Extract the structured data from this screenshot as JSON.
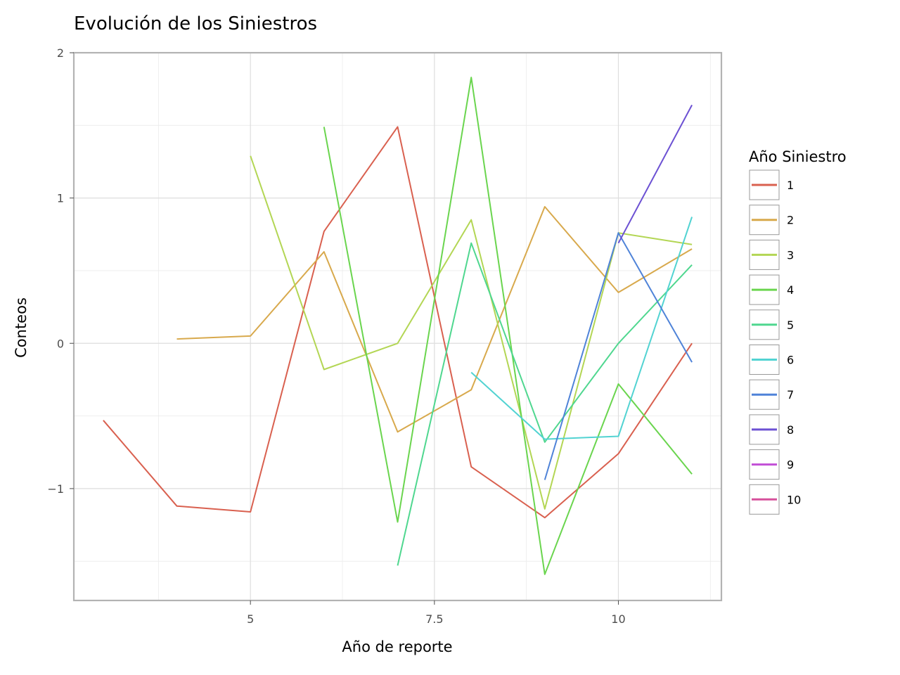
{
  "chart_data": {
    "type": "line",
    "title": "Evolución de los Siniestros",
    "xlabel": "Año de reporte",
    "ylabel": "Conteos",
    "xlim": [
      2.6,
      11.4
    ],
    "ylim": [
      -1.77,
      2.0
    ],
    "x_ticks": [
      5,
      7.5,
      10
    ],
    "x_tick_labels": [
      "5",
      "7.5",
      "10"
    ],
    "y_ticks": [
      -1,
      0,
      1,
      2
    ],
    "y_tick_labels": [
      "−1",
      "0",
      "1",
      "2"
    ],
    "grid": true,
    "legend": {
      "title": "Año Siniestro",
      "position": "right"
    },
    "series": [
      {
        "name": "1",
        "color": "#D9604F",
        "x": [
          3,
          4,
          5,
          6,
          7,
          8,
          9,
          10,
          11
        ],
        "y": [
          -0.53,
          -1.12,
          -1.16,
          0.77,
          1.49,
          -0.85,
          -1.2,
          -0.76,
          0.0
        ]
      },
      {
        "name": "2",
        "color": "#D8A94C",
        "x": [
          4,
          5,
          6,
          7,
          8,
          9,
          10,
          11
        ],
        "y": [
          0.03,
          0.05,
          0.63,
          -0.61,
          -0.32,
          0.94,
          0.35,
          0.65
        ]
      },
      {
        "name": "3",
        "color": "#B3D654",
        "x": [
          5,
          6,
          7,
          8,
          9,
          10,
          11
        ],
        "y": [
          1.29,
          -0.18,
          0.0,
          0.85,
          -1.14,
          0.76,
          0.68
        ]
      },
      {
        "name": "4",
        "color": "#6AD54E",
        "x": [
          6,
          7,
          8,
          9,
          10,
          11
        ],
        "y": [
          1.49,
          -1.23,
          1.83,
          -1.59,
          -0.28,
          -0.9
        ]
      },
      {
        "name": "5",
        "color": "#4FD78F",
        "x": [
          7,
          8,
          9,
          10,
          11
        ],
        "y": [
          -1.53,
          0.69,
          -0.68,
          0.0,
          0.54
        ]
      },
      {
        "name": "6",
        "color": "#52D3D2",
        "x": [
          8,
          9,
          10,
          11
        ],
        "y": [
          -0.2,
          -0.66,
          -0.64,
          0.87
        ]
      },
      {
        "name": "7",
        "color": "#4F83D8",
        "x": [
          9,
          10,
          11
        ],
        "y": [
          -0.94,
          0.76,
          -0.13
        ]
      },
      {
        "name": "8",
        "color": "#6C51D3",
        "x": [
          10,
          11
        ],
        "y": [
          0.69,
          1.64
        ]
      },
      {
        "name": "9",
        "color": "#C24FD6",
        "x": [],
        "y": []
      },
      {
        "name": "10",
        "color": "#D6509B",
        "x": [],
        "y": []
      }
    ]
  }
}
